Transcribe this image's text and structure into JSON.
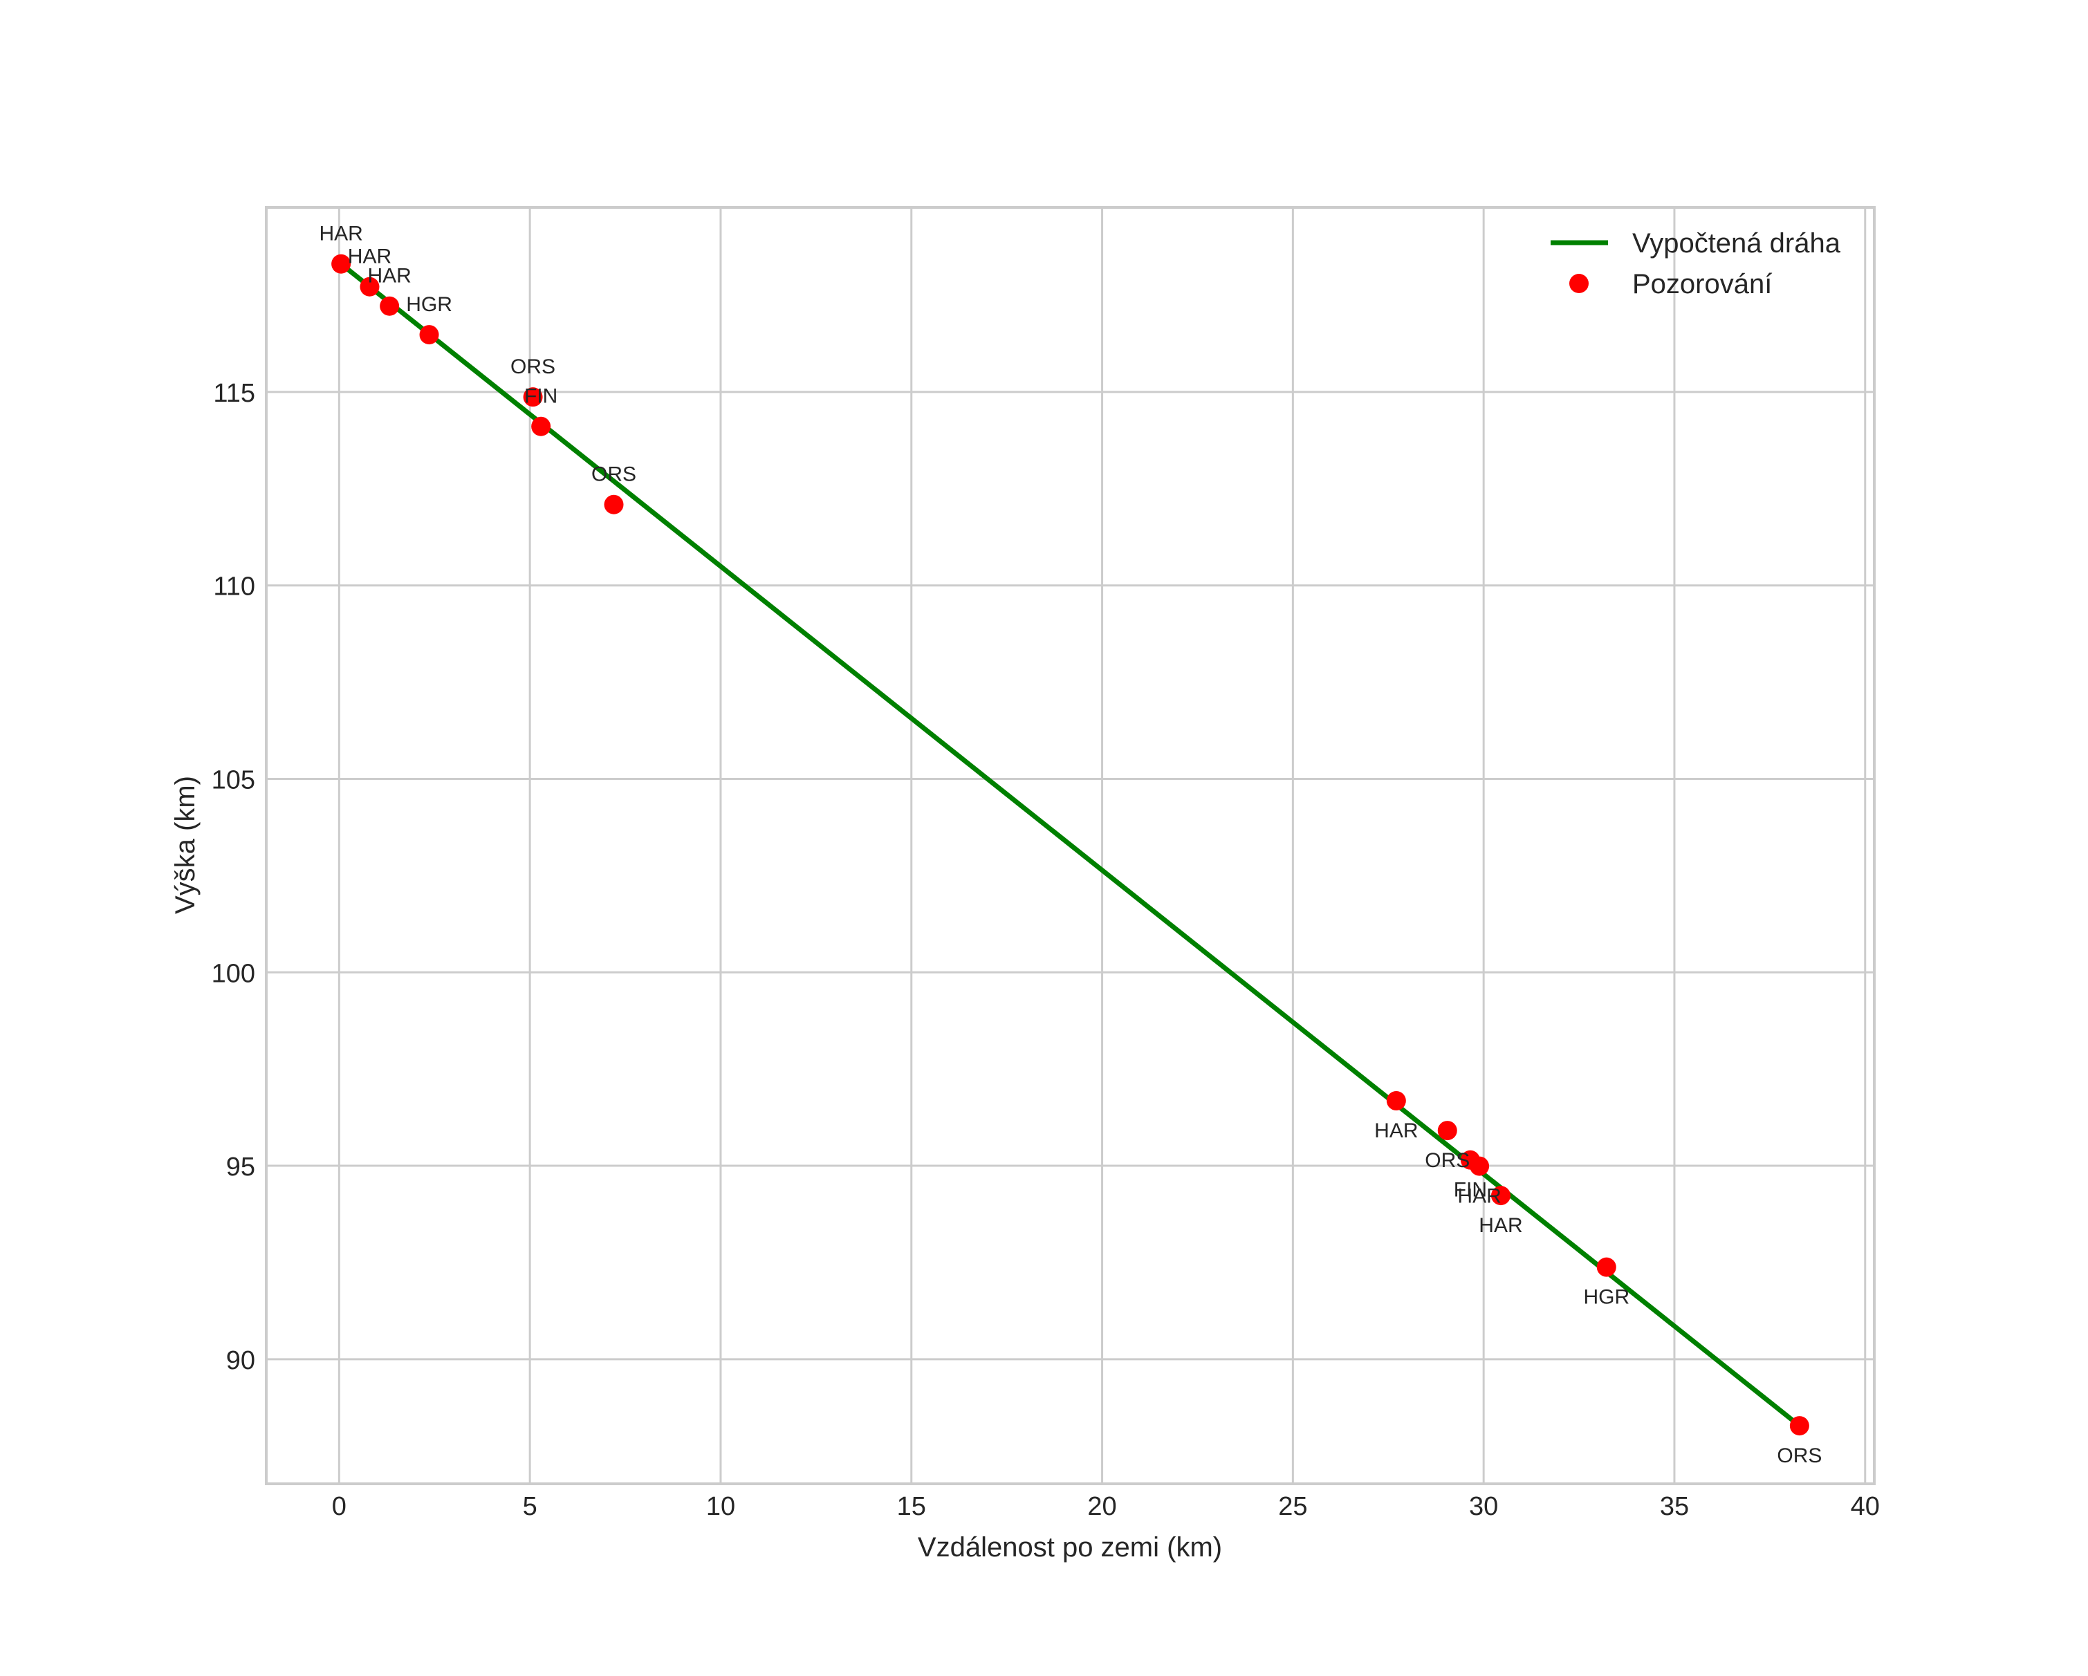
{
  "chart_data": {
    "type": "line+scatter",
    "title": "",
    "xlabel": "Vzdálenost po zemi (km)",
    "ylabel": "Výška (km)",
    "xlim": [
      -1.91,
      40.24
    ],
    "ylim": [
      86.78,
      119.77
    ],
    "xticks": [
      0,
      5,
      10,
      15,
      20,
      25,
      30,
      35,
      40
    ],
    "yticks": [
      90,
      95,
      100,
      105,
      110,
      115
    ],
    "grid": true,
    "legend_position": "upper right",
    "colors": {
      "line": "#008000",
      "points": "#ff0000",
      "grid": "#cccccc",
      "text": "#262626"
    },
    "series": [
      {
        "name": "Vypočtená dráha",
        "type": "line",
        "x": [
          0.05,
          38.28
        ],
        "y": [
          118.31,
          88.28
        ]
      },
      {
        "name": "Pozorování",
        "type": "scatter",
        "points": [
          {
            "x": 0.05,
            "y": 118.31,
            "label": "HAR",
            "label_pos": "above"
          },
          {
            "x": 0.8,
            "y": 117.72,
            "label": "HAR",
            "label_pos": "above"
          },
          {
            "x": 1.32,
            "y": 117.22,
            "label": "HAR",
            "label_pos": "above"
          },
          {
            "x": 2.36,
            "y": 116.48,
            "label": "HGR",
            "label_pos": "above"
          },
          {
            "x": 5.08,
            "y": 114.87,
            "label": "ORS",
            "label_pos": "above"
          },
          {
            "x": 5.29,
            "y": 114.11,
            "label": "FIN",
            "label_pos": "above"
          },
          {
            "x": 7.2,
            "y": 112.09,
            "label": "ORS",
            "label_pos": "above"
          },
          {
            "x": 27.71,
            "y": 96.68,
            "label": "HAR",
            "label_pos": "below"
          },
          {
            "x": 29.05,
            "y": 95.91,
            "label": "ORS",
            "label_pos": "below"
          },
          {
            "x": 29.65,
            "y": 95.15,
            "label": "FIN",
            "label_pos": "below"
          },
          {
            "x": 29.89,
            "y": 94.99,
            "label": "HAR",
            "label_pos": "below"
          },
          {
            "x": 30.45,
            "y": 94.23,
            "label": "HAR",
            "label_pos": "below"
          },
          {
            "x": 33.22,
            "y": 92.38,
            "label": "HGR",
            "label_pos": "below"
          },
          {
            "x": 38.28,
            "y": 88.28,
            "label": "ORS",
            "label_pos": "below"
          }
        ]
      }
    ]
  },
  "legend": {
    "items": [
      {
        "label": "Vypočtená dráha",
        "marker": "line",
        "color": "#008000"
      },
      {
        "label": "Pozorování",
        "marker": "dot",
        "color": "#ff0000"
      }
    ]
  }
}
